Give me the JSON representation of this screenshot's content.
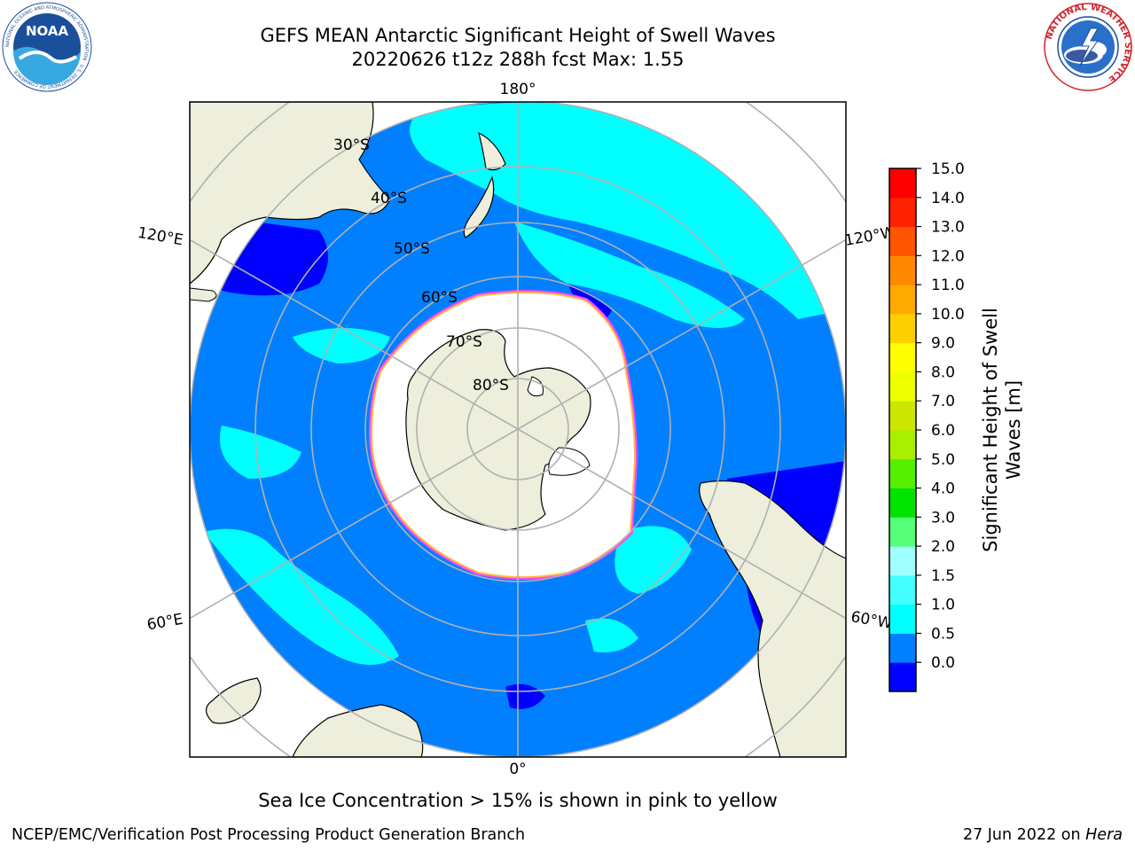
{
  "title": {
    "line1": "GEFS MEAN Antarctic Significant Height of Swell Waves",
    "line2": "20220626 t12z 288h fcst   Max: 1.55"
  },
  "logos": {
    "left": {
      "icon": "noaa-logo",
      "text": "NOAA",
      "ring_text": "NATIONAL OCEANIC AND ATMOSPHERIC ADMINISTRATION · U.S. DEPARTMENT OF COMMERCE"
    },
    "right": {
      "icon": "nws-logo",
      "ring_text": "NATIONAL WEATHER SERVICE"
    }
  },
  "map": {
    "projection": "south-polar-stereographic",
    "lon_labels": {
      "top": "180°",
      "bottom": "0°",
      "upper_left": "120°E",
      "upper_right": "120°W",
      "lower_left": "60°E",
      "lower_right": "60°W"
    },
    "lat_labels": [
      "30°S",
      "40°S",
      "50°S",
      "60°S",
      "70°S",
      "80°S"
    ],
    "colors": {
      "land": "#eeeedc",
      "ocean_0_0p5": "#0000ff",
      "ocean_0p5_1": "#0080ff",
      "ocean_1_1p5": "#00ffff",
      "sea_ice": "#ffffff",
      "ice_edge_pink": "#ff44ff",
      "ice_edge_yellow": "#ffbb44",
      "grid": "#b0b0b0"
    }
  },
  "colorbar": {
    "label": "Significant Height of Swell Waves [m]",
    "label_line1": "Significant Height of Swell",
    "label_line2": "Waves [m]",
    "ticks": [
      "15.0",
      "14.0",
      "13.0",
      "12.0",
      "11.0",
      "10.0",
      "9.0",
      "8.0",
      "7.0",
      "6.0",
      "5.0",
      "4.0",
      "3.0",
      "2.0",
      "1.5",
      "1.0",
      "0.5",
      "0.0"
    ],
    "colors": [
      "#0000ff",
      "#0080ff",
      "#00ffff",
      "#44ffff",
      "#a0ffff",
      "#55ff77",
      "#00e200",
      "#55ee00",
      "#aaee00",
      "#cce600",
      "#eeff00",
      "#ffff00",
      "#ffd000",
      "#ffaa00",
      "#ff8800",
      "#ff5500",
      "#ff2200",
      "#ff0000"
    ]
  },
  "caption": "Sea Ice Concentration > 15% is shown in pink to yellow",
  "footer": {
    "left": "NCEP/EMC/Verification Post Processing Product Generation Branch",
    "right_prefix": "27 Jun 2022 on ",
    "right_machine": "Hera"
  }
}
